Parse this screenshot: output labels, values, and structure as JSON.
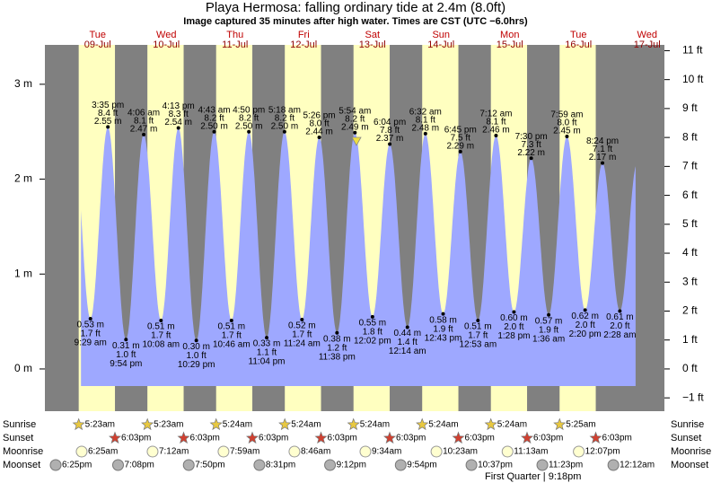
{
  "chart_data": {
    "type": "area",
    "title": "Playa Hermosa: falling  ordinary tide at 2.4m (8.0ft)",
    "subtitle": "Image captured 35 minutes after high water. Times are CST (UTC −6.0hrs)",
    "days": [
      {
        "weekday": "Tue",
        "date": "09-Jul"
      },
      {
        "weekday": "Wed",
        "date": "10-Jul"
      },
      {
        "weekday": "Thu",
        "date": "11-Jul"
      },
      {
        "weekday": "Fri",
        "date": "12-Jul"
      },
      {
        "weekday": "Sat",
        "date": "13-Jul"
      },
      {
        "weekday": "Sun",
        "date": "14-Jul"
      },
      {
        "weekday": "Mon",
        "date": "15-Jul"
      },
      {
        "weekday": "Tue",
        "date": "16-Jul"
      },
      {
        "weekday": "Wed",
        "date": "17-Jul"
      }
    ],
    "times": [
      "9:29 am",
      "3:35 pm",
      "9:54 pm",
      "4:06 am",
      "10:08 am",
      "4:13 pm",
      "10:29 pm",
      "4:43 am",
      "10:46 am",
      "4:50 pm",
      "11:04 pm",
      "5:18 am",
      "11:24 am",
      "5:26 pm",
      "11:38 pm",
      "5:54 am",
      "12:02 pm",
      "6:04 pm",
      "12:14 am",
      "6:32 am",
      "12:43 pm",
      "6:45 pm",
      "12:53 am",
      "7:12 am",
      "1:28 pm",
      "7:30 pm",
      "1:36 am",
      "7:59 am",
      "2:20 pm",
      "8:24 pm",
      "2:28 am"
    ],
    "values": [
      0.53,
      2.55,
      0.31,
      2.47,
      0.51,
      2.54,
      0.3,
      2.5,
      0.51,
      2.5,
      0.33,
      2.5,
      0.52,
      2.44,
      0.38,
      2.49,
      0.55,
      2.37,
      0.44,
      2.48,
      0.58,
      2.29,
      0.51,
      2.46,
      0.6,
      2.22,
      0.57,
      2.45,
      0.62,
      2.17,
      0.61
    ],
    "value_labels": [
      "0.53 m",
      "2.55 m",
      "0.31 m",
      "2.47 m",
      "0.51 m",
      "2.54 m",
      "0.30 m",
      "2.50 m",
      "0.51 m",
      "2.50 m",
      "0.33 m",
      "2.50 m",
      "0.52 m",
      "2.44 m",
      "0.38 m",
      "2.49 m",
      "0.55 m",
      "2.37 m",
      "0.44 m",
      "2.48 m",
      "0.58 m",
      "2.29 m",
      "0.51 m",
      "2.46 m",
      "0.60 m",
      "2.22 m",
      "0.57 m",
      "2.45 m",
      "0.62 m",
      "2.17 m",
      "0.61 m"
    ],
    "ft_labels": [
      "1.7 ft",
      "8.4 ft",
      "1.0 ft",
      "8.1 ft",
      "1.7 ft",
      "8.3 ft",
      "1.0 ft",
      "8.2 ft",
      "1.7 ft",
      "8.2 ft",
      "1.1 ft",
      "8.2 ft",
      "1.7 ft",
      "8.0 ft",
      "1.2 ft",
      "8.2 ft",
      "1.8 ft",
      "7.8 ft",
      "1.4 ft",
      "8.1 ft",
      "1.9 ft",
      "7.5 ft",
      "1.7 ft",
      "8.1 ft",
      "2.0 ft",
      "7.3 ft",
      "1.9 ft",
      "8.0 ft",
      "2.0 ft",
      "7.1 ft",
      "2.0 ft"
    ],
    "ylim": [
      -0.445,
      3.415
    ],
    "yticks": [
      {
        "value": 0,
        "label": "0 m"
      },
      {
        "value": 1,
        "label": "1 m"
      },
      {
        "value": 2,
        "label": "2 m"
      },
      {
        "value": 3,
        "label": "3 m"
      }
    ],
    "y2lim": [
      -1.46,
      11.2
    ],
    "y2ticks": [
      {
        "value": -1,
        "label": "−1 ft"
      },
      {
        "value": 0,
        "label": "0 ft"
      },
      {
        "value": 1,
        "label": "1 ft"
      },
      {
        "value": 2,
        "label": "2 ft"
      },
      {
        "value": 3,
        "label": "3 ft"
      },
      {
        "value": 4,
        "label": "4 ft"
      },
      {
        "value": 5,
        "label": "5 ft"
      },
      {
        "value": 6,
        "label": "6 ft"
      },
      {
        "value": 7,
        "label": "7 ft"
      },
      {
        "value": 8,
        "label": "8 ft"
      },
      {
        "value": 9,
        "label": "9 ft"
      },
      {
        "value": 10,
        "label": "10 ft"
      },
      {
        "value": 11,
        "label": "11 ft"
      }
    ],
    "color": "#9ea8ff",
    "day_color": "#ffffc0",
    "night_color": "#808080",
    "sunrise": {
      "label": "Sunrise",
      "times": [
        "5:23am",
        "5:23am",
        "5:24am",
        "5:24am",
        "5:24am",
        "5:24am",
        "5:24am",
        "5:25am"
      ]
    },
    "sunset": {
      "label": "Sunset",
      "times": [
        "6:03pm",
        "6:03pm",
        "6:03pm",
        "6:03pm",
        "6:03pm",
        "6:03pm",
        "6:03pm",
        "6:03pm"
      ]
    },
    "moonrise": {
      "label": "Moonrise",
      "times": [
        "6:25am",
        "7:12am",
        "7:59am",
        "8:46am",
        "9:34am",
        "10:23am",
        "11:13am",
        "12:07pm"
      ]
    },
    "moonset": {
      "label": "Moonset",
      "times": [
        "6:25pm",
        "7:08pm",
        "7:50pm",
        "8:31pm",
        "9:12pm",
        "9:54pm",
        "10:37pm",
        "11:23pm",
        "12:12am"
      ]
    },
    "moon_phase": "First Quarter | 9:18pm"
  }
}
